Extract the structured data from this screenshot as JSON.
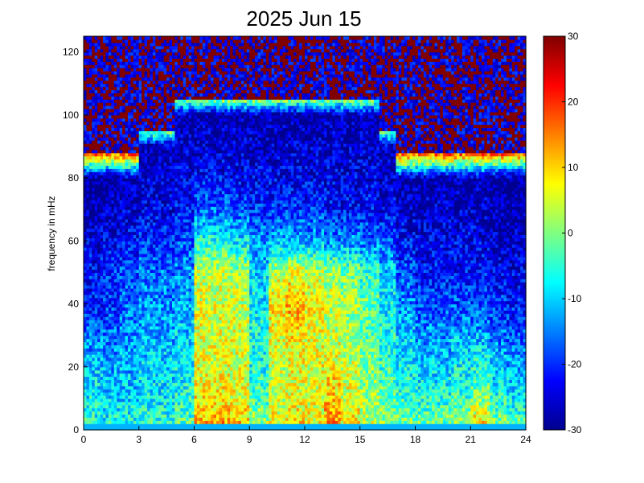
{
  "chart_data": {
    "type": "heatmap",
    "title": "2025 Jun 15",
    "xlabel": "",
    "ylabel": "frequency in mHz",
    "x_ticks": [
      "0",
      "3",
      "6",
      "9",
      "12",
      "15",
      "18",
      "21",
      "24"
    ],
    "y_ticks": [
      "0",
      "20",
      "40",
      "60",
      "80",
      "100",
      "120"
    ],
    "xlim": [
      0,
      24
    ],
    "ylim": [
      0,
      125
    ],
    "colorbar": {
      "ticks": [
        "30",
        "20",
        "10",
        "0",
        "-10",
        "-20",
        "-30"
      ],
      "range": [
        -30,
        30
      ],
      "colormap": "jet"
    },
    "grid": false,
    "description_values": {
      "hour_bins": 24,
      "freq_bins_mHz": [
        0,
        10,
        20,
        30,
        40,
        50,
        60,
        70,
        80,
        90,
        100,
        110,
        120
      ],
      "approx_power_db": [
        [
          -5,
          -8,
          -10,
          -16,
          -22,
          -22,
          -24,
          -28,
          -30,
          30,
          30,
          30,
          30
        ],
        [
          -6,
          -10,
          -12,
          -16,
          -20,
          -20,
          -24,
          -26,
          -30,
          30,
          30,
          30,
          30
        ],
        [
          -5,
          -10,
          -12,
          -14,
          -16,
          -18,
          -22,
          -26,
          -28,
          30,
          30,
          30,
          30
        ],
        [
          -4,
          -8,
          -10,
          -12,
          -14,
          -16,
          -20,
          -24,
          -26,
          -28,
          30,
          30,
          30
        ],
        [
          -4,
          -8,
          -10,
          -12,
          -14,
          -16,
          -20,
          -24,
          -26,
          -28,
          30,
          30,
          30
        ],
        [
          -2,
          -6,
          -8,
          -10,
          -12,
          -14,
          -18,
          -22,
          -24,
          -26,
          -28,
          30,
          30
        ],
        [
          12,
          8,
          6,
          6,
          5,
          4,
          -6,
          -16,
          -22,
          -26,
          -28,
          30,
          30
        ],
        [
          14,
          8,
          6,
          6,
          5,
          4,
          -6,
          -16,
          -22,
          -26,
          -28,
          30,
          30
        ],
        [
          12,
          6,
          5,
          5,
          4,
          2,
          -8,
          -18,
          -24,
          -26,
          -28,
          30,
          30
        ],
        [
          4,
          -4,
          -6,
          -6,
          -8,
          -10,
          -14,
          -20,
          -24,
          -26,
          -28,
          30,
          30
        ],
        [
          8,
          4,
          4,
          6,
          8,
          4,
          -12,
          -20,
          -24,
          -26,
          -28,
          30,
          30
        ],
        [
          10,
          6,
          6,
          8,
          12,
          6,
          -12,
          -20,
          -24,
          -26,
          -28,
          30,
          30
        ],
        [
          8,
          6,
          6,
          6,
          8,
          4,
          -12,
          -20,
          -24,
          -26,
          -28,
          30,
          30
        ],
        [
          14,
          10,
          8,
          4,
          4,
          2,
          -14,
          -22,
          -24,
          -26,
          -28,
          30,
          30
        ],
        [
          8,
          6,
          4,
          2,
          2,
          0,
          -14,
          -22,
          -24,
          -26,
          -28,
          30,
          30
        ],
        [
          4,
          2,
          0,
          -2,
          -2,
          -4,
          -16,
          -22,
          -24,
          -26,
          -28,
          30,
          30
        ],
        [
          2,
          -2,
          -4,
          -6,
          -8,
          -10,
          -18,
          -24,
          -26,
          -28,
          30,
          30,
          30
        ],
        [
          0,
          -4,
          -8,
          -10,
          -14,
          -18,
          -22,
          -26,
          -28,
          30,
          30,
          30,
          30
        ],
        [
          0,
          -6,
          -10,
          -14,
          -18,
          -22,
          -24,
          -26,
          -28,
          30,
          30,
          30,
          30
        ],
        [
          0,
          -6,
          -10,
          -14,
          -18,
          -22,
          -24,
          -26,
          -28,
          30,
          30,
          30,
          30
        ],
        [
          4,
          -4,
          -8,
          -12,
          -18,
          -22,
          -24,
          -26,
          -28,
          30,
          30,
          30,
          30
        ],
        [
          12,
          0,
          -6,
          -12,
          -18,
          -22,
          -24,
          -26,
          -28,
          30,
          30,
          30,
          30
        ],
        [
          2,
          -6,
          -10,
          -16,
          -20,
          -24,
          -26,
          -28,
          -30,
          30,
          30,
          30,
          30
        ],
        [
          0,
          -8,
          -12,
          -18,
          -22,
          -24,
          -26,
          -28,
          -30,
          30,
          30,
          30,
          30
        ]
      ]
    }
  }
}
